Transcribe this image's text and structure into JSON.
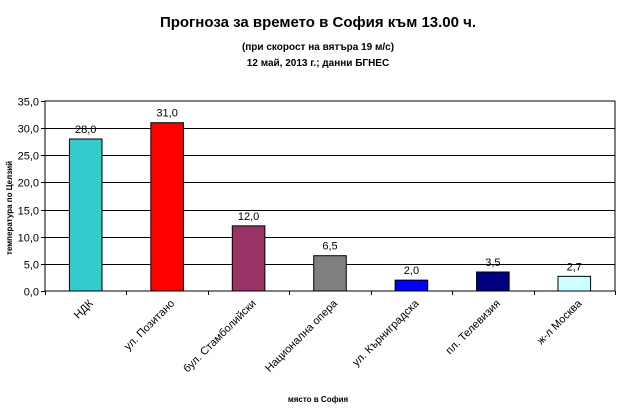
{
  "chart_data": {
    "type": "bar",
    "title": "Прогноза за времето в София към 13.00 ч.",
    "subtitle_line1": "(при скорост на вятъра 19 м/с)",
    "subtitle_line2": "12 май, 2013 г.; данни БГНЕС",
    "xlabel": "място в София",
    "ylabel": "температура по Целзий",
    "ylim": [
      0,
      35
    ],
    "ytick_step": 5,
    "yticks": [
      "0,0",
      "5,0",
      "10,0",
      "15,0",
      "20,0",
      "25,0",
      "30,0",
      "35,0"
    ],
    "grid": true,
    "legend": "none",
    "categories": [
      "НДК",
      "ул. Позитано",
      "бул. Стамболийски",
      "Национална опера",
      "ул. Кърниградска",
      "пл. Телевизия",
      "ж-л Москва"
    ],
    "values": [
      28.0,
      31.0,
      12.0,
      6.5,
      2.0,
      3.5,
      2.7
    ],
    "data_labels": [
      "28,0",
      "31,0",
      "12,0",
      "6,5",
      "2,0",
      "3,5",
      "2,7"
    ],
    "colors": [
      "#33cccc",
      "#ff0000",
      "#993366",
      "#808080",
      "#0000ff",
      "#000080",
      "#ccffff"
    ]
  }
}
